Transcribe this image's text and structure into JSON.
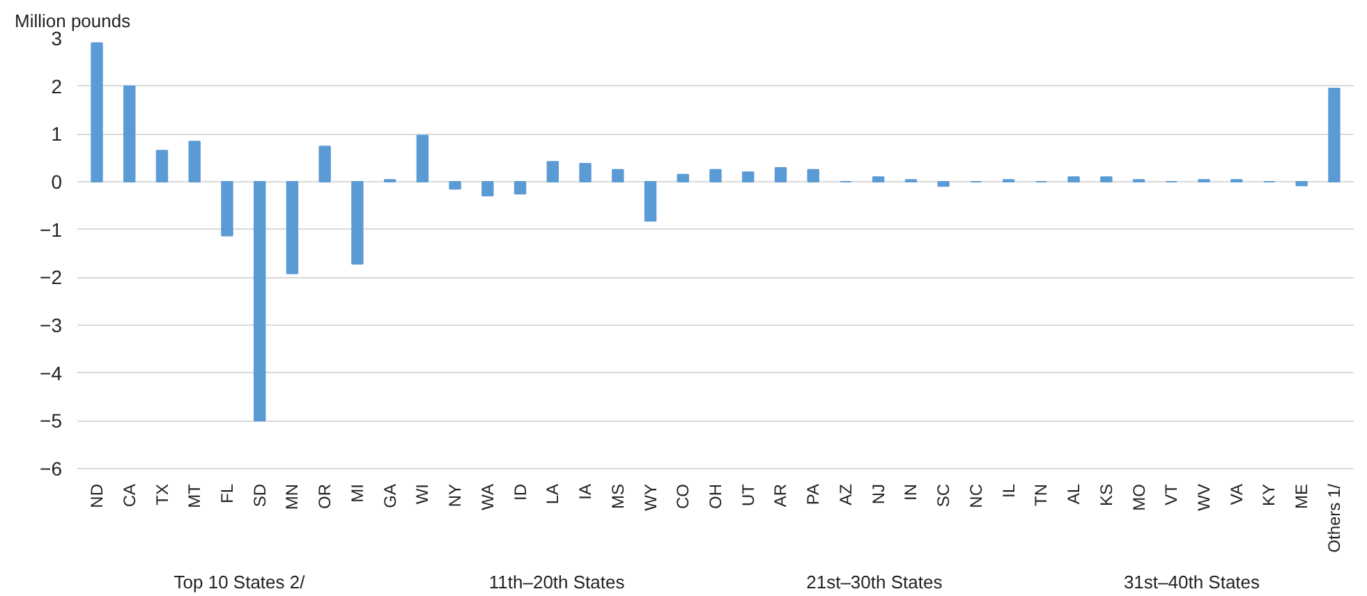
{
  "chart_data": {
    "type": "bar",
    "ylabel": "Million pounds",
    "categories": [
      "ND",
      "CA",
      "TX",
      "MT",
      "FL",
      "SD",
      "MN",
      "OR",
      "MI",
      "GA",
      "WI",
      "NY",
      "WA",
      "ID",
      "LA",
      "IA",
      "MS",
      "WY",
      "CO",
      "OH",
      "UT",
      "AR",
      "PA",
      "AZ",
      "NJ",
      "IN",
      "SC",
      "NC",
      "IL",
      "TN",
      "AL",
      "KS",
      "MO",
      "VT",
      "WV",
      "VA",
      "KY",
      "ME",
      "Others 1/"
    ],
    "values": [
      2.9,
      2.0,
      0.65,
      0.84,
      -1.13,
      -5.0,
      -1.92,
      0.74,
      -1.72,
      0.04,
      0.97,
      -0.15,
      -0.29,
      -0.25,
      0.42,
      0.38,
      0.25,
      -0.82,
      0.15,
      0.25,
      0.2,
      0.29,
      0.25,
      0,
      0.1,
      0.04,
      -0.09,
      0,
      0.04,
      0,
      0.1,
      0.1,
      0.04,
      0,
      0.04,
      0.04,
      0,
      -0.08,
      1.95
    ],
    "color": "#5b9bd5",
    "ylim": [
      -6,
      3
    ],
    "yticks": [
      -6,
      -5,
      -4,
      -3,
      -2,
      -1,
      0,
      1,
      2,
      3
    ],
    "grid": "y",
    "annotations": [
      "Top 10 States 2/",
      "11th–20th States",
      "21st–30th States",
      "31st–40th States"
    ]
  }
}
